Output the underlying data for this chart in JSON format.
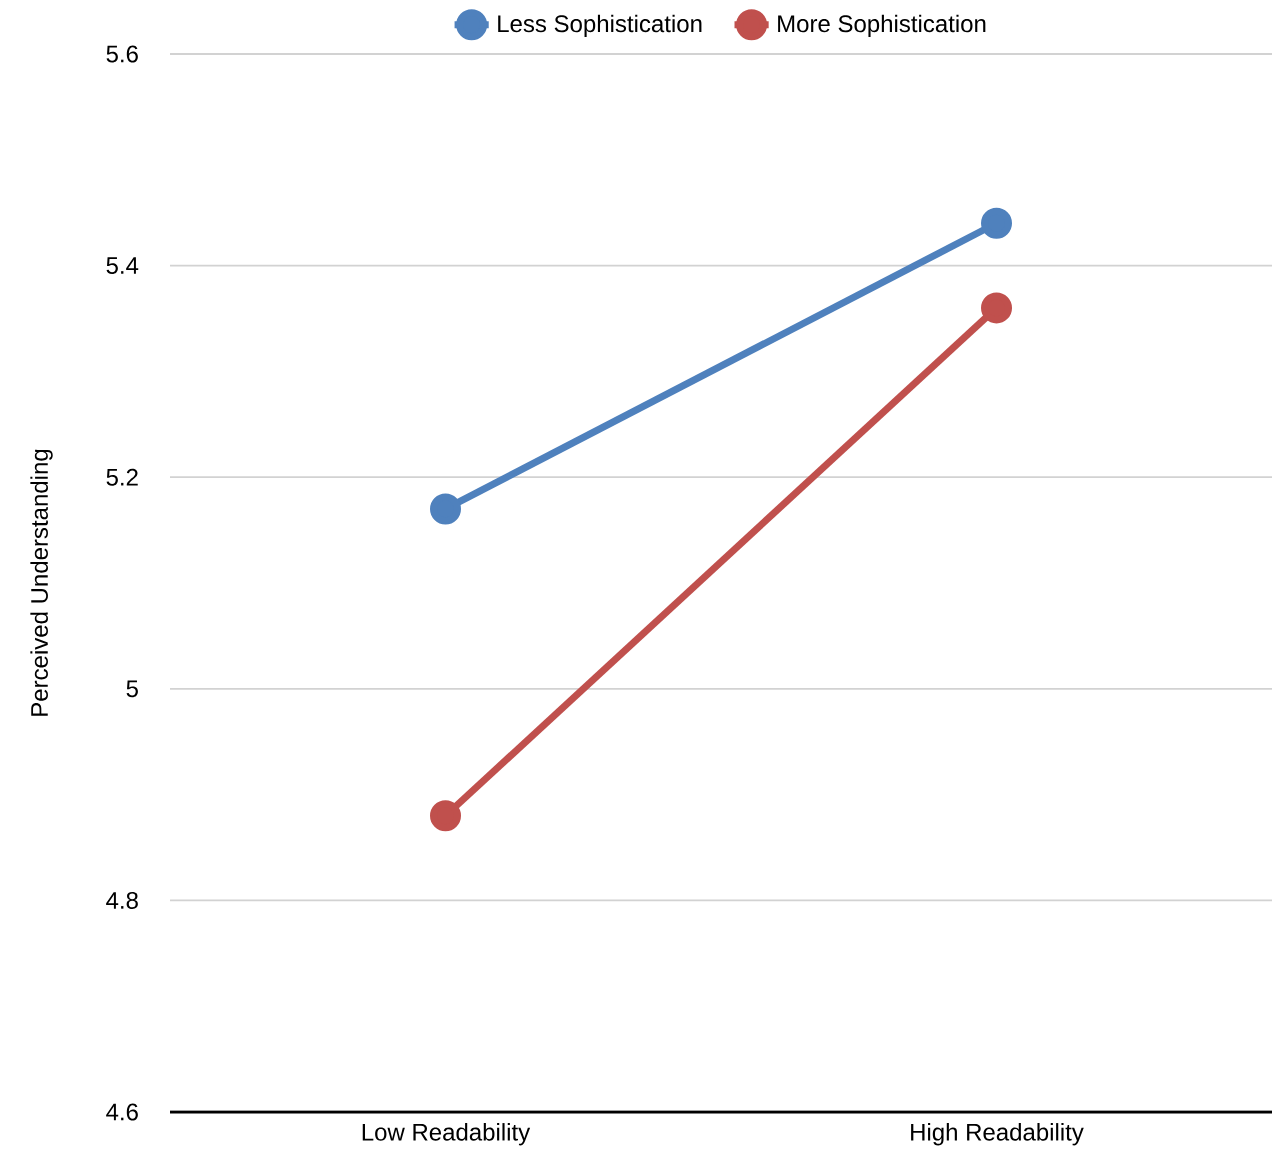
{
  "chart_data": {
    "type": "line",
    "ylabel": "Perceived Understanding",
    "categories": [
      "Low Readability",
      "High Readability"
    ],
    "series": [
      {
        "name": "Less Sophistication",
        "color": "#4f81bd",
        "values": [
          5.17,
          5.44
        ]
      },
      {
        "name": "More Sophistication",
        "color": "#c0504d",
        "values": [
          4.88,
          5.36
        ]
      }
    ],
    "ylim": [
      4.6,
      5.6
    ],
    "yticks": [
      4.6,
      4.8,
      5,
      5.2,
      5.4,
      5.6
    ],
    "grid": "y",
    "legend": "top",
    "marker": "circle",
    "line_style": "solid"
  }
}
